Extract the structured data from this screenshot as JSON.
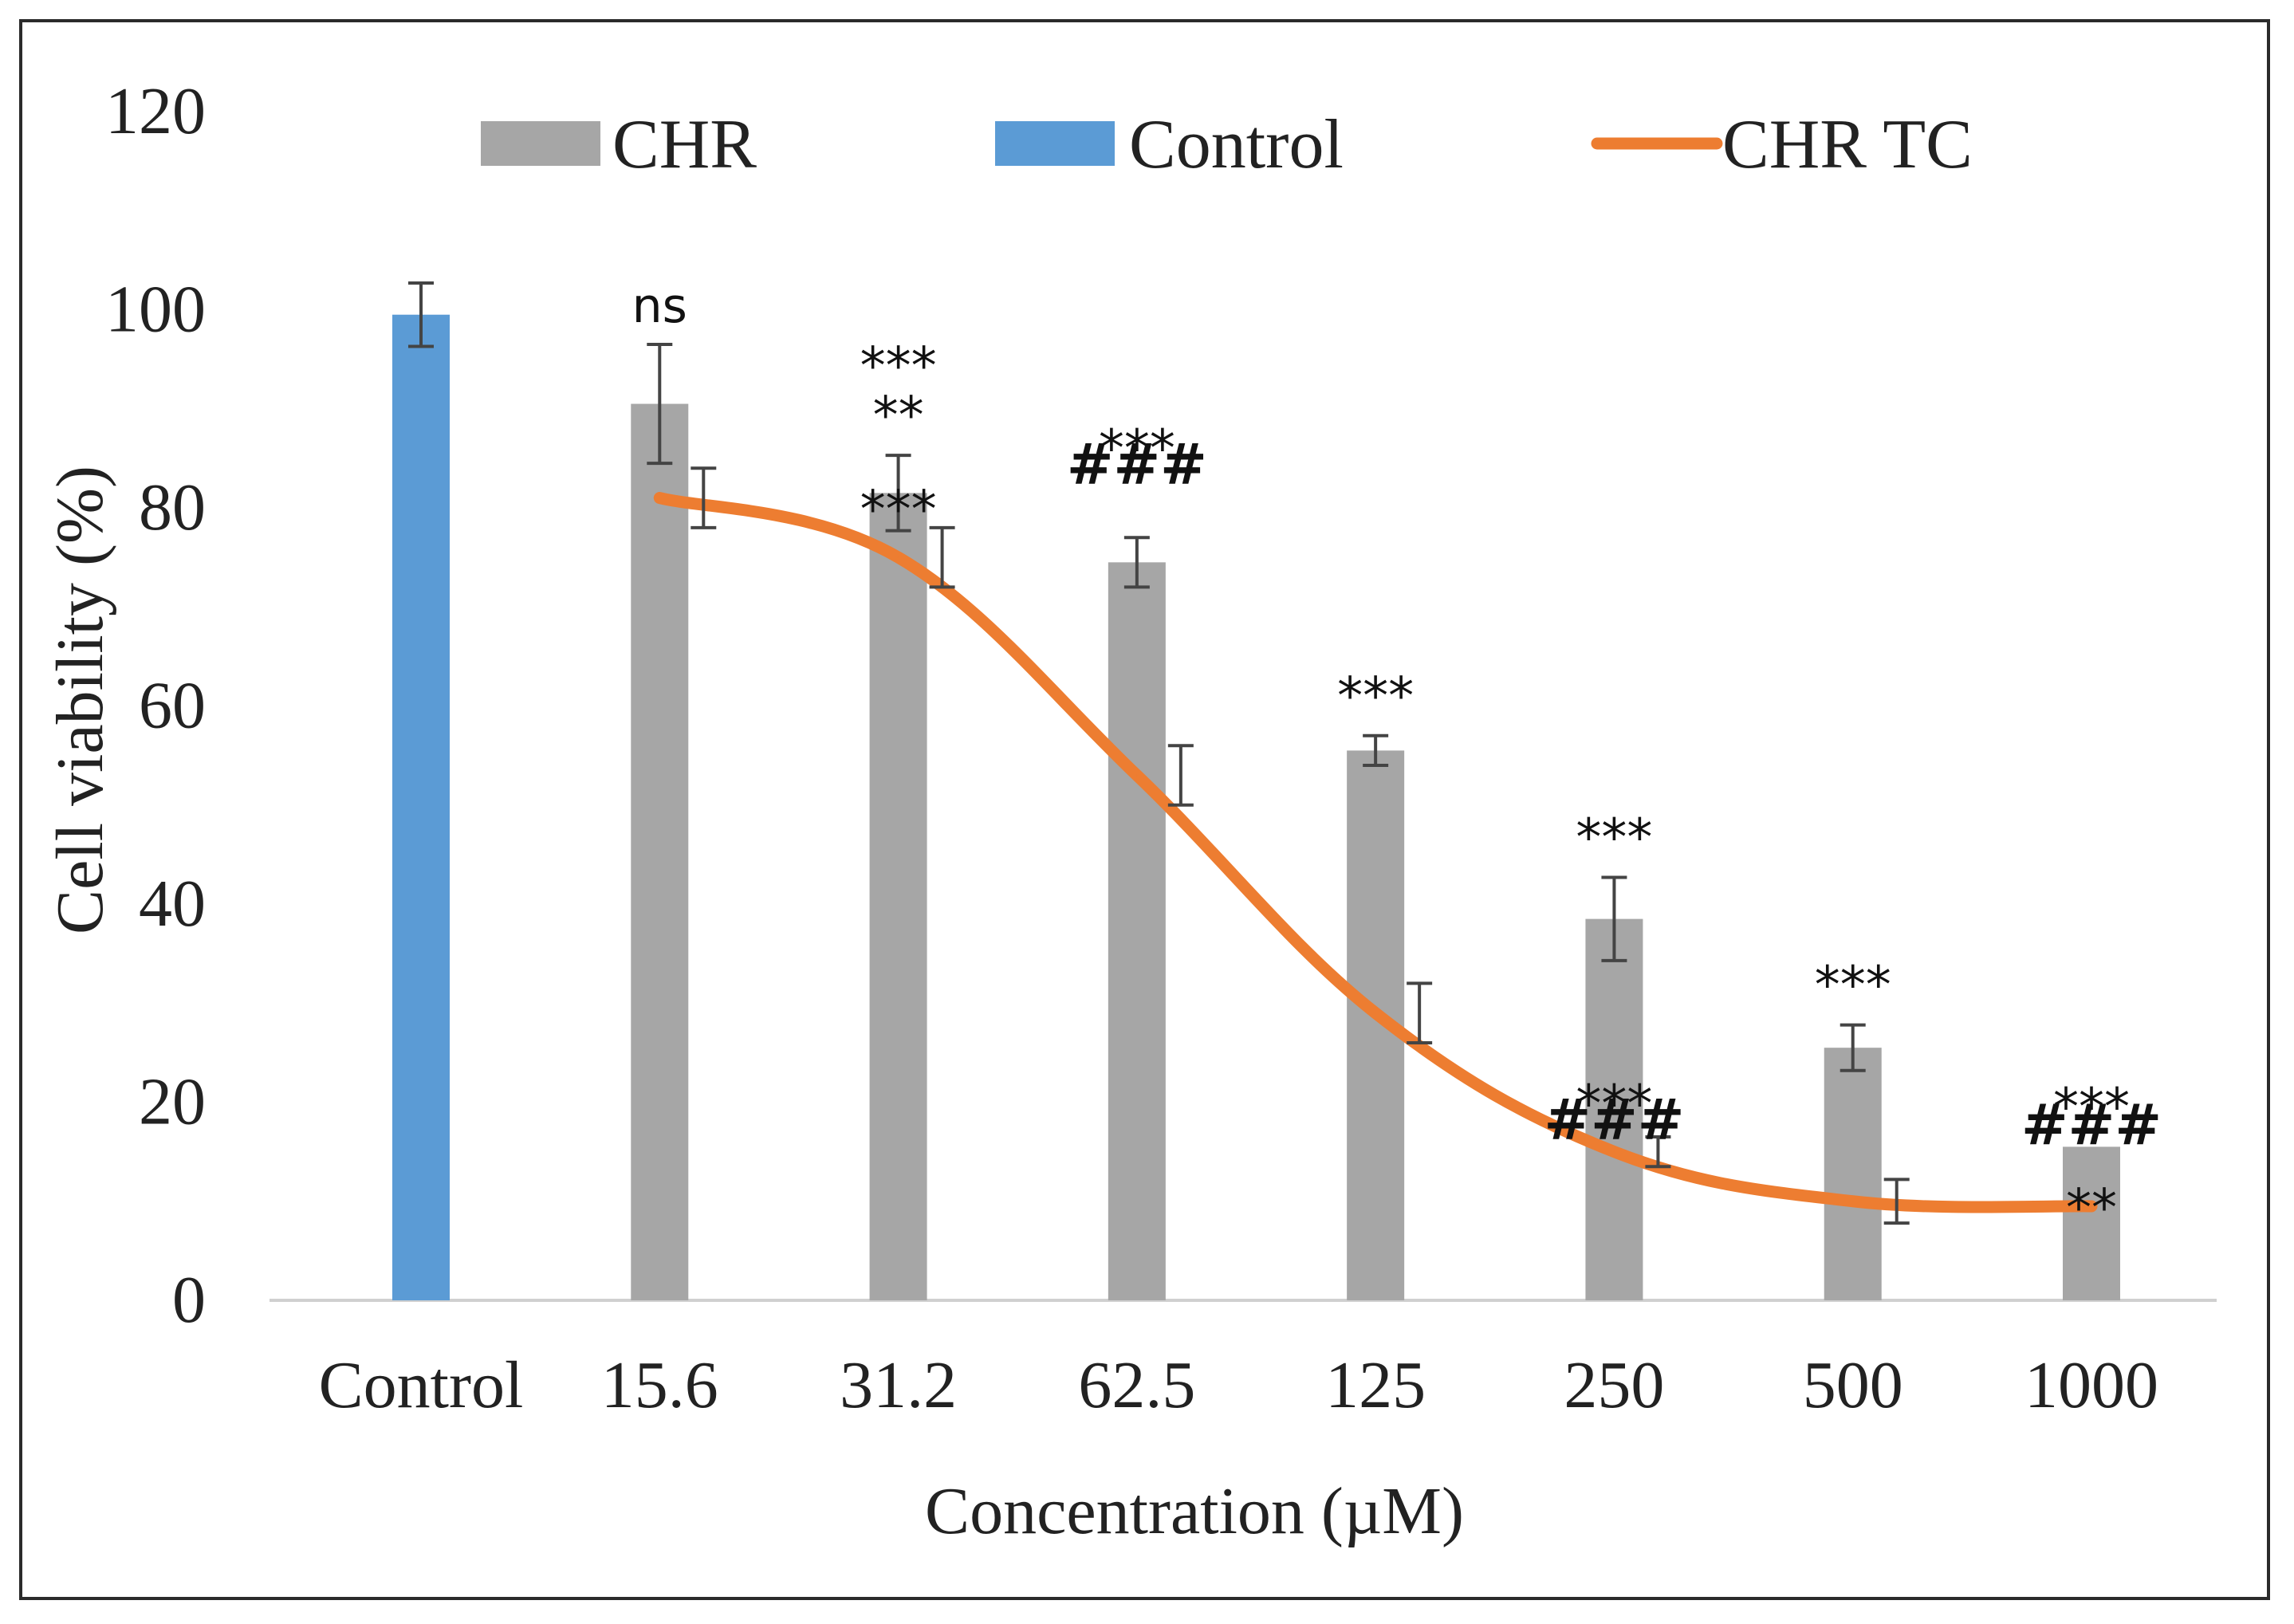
{
  "chart_data": {
    "type": "bar",
    "title": "",
    "xlabel": "Concentration (µM)",
    "ylabel": "Cell viability (%)",
    "ylim": [
      0,
      120
    ],
    "yticks": [
      0,
      20,
      40,
      60,
      80,
      100,
      120
    ],
    "grid": false,
    "legend_position": "top",
    "categories": [
      "Control",
      "15.6",
      "31.2",
      "62.5",
      "125",
      "250",
      "500",
      "1000"
    ],
    "legend": [
      {
        "name": "CHR",
        "kind": "bar",
        "color": "#a6a6a6"
      },
      {
        "name": "Control",
        "kind": "bar",
        "color": "#5b9bd5"
      },
      {
        "name": "CHR TC",
        "kind": "line",
        "color": "#ed7d31"
      }
    ],
    "series": [
      {
        "name": "Control",
        "kind": "bar",
        "color": "#5b9bd5",
        "values": [
          99.5,
          null,
          null,
          null,
          null,
          null,
          null,
          null
        ],
        "errors": [
          3.2,
          null,
          null,
          null,
          null,
          null,
          null,
          null
        ]
      },
      {
        "name": "CHR",
        "kind": "bar",
        "color": "#a6a6a6",
        "values": [
          null,
          90.5,
          81.5,
          74.5,
          55.5,
          38.5,
          25.5,
          15.5
        ],
        "errors": [
          null,
          6,
          3.8,
          2.5,
          1.5,
          4.2,
          2.3,
          null
        ],
        "annotations": [
          null,
          "ns",
          "***\n**",
          "***\n###",
          "***",
          "***",
          "***",
          "***"
        ]
      },
      {
        "name": "CHR TC",
        "kind": "line",
        "color": "#ed7d31",
        "values": [
          null,
          81,
          75,
          53,
          29,
          15,
          10,
          9.5
        ],
        "errors": [
          null,
          3,
          3,
          3,
          3,
          1.5,
          2.2,
          null
        ],
        "annotations": [
          null,
          null,
          "***",
          null,
          null,
          "***\n###",
          null,
          "###\n**"
        ]
      }
    ]
  }
}
